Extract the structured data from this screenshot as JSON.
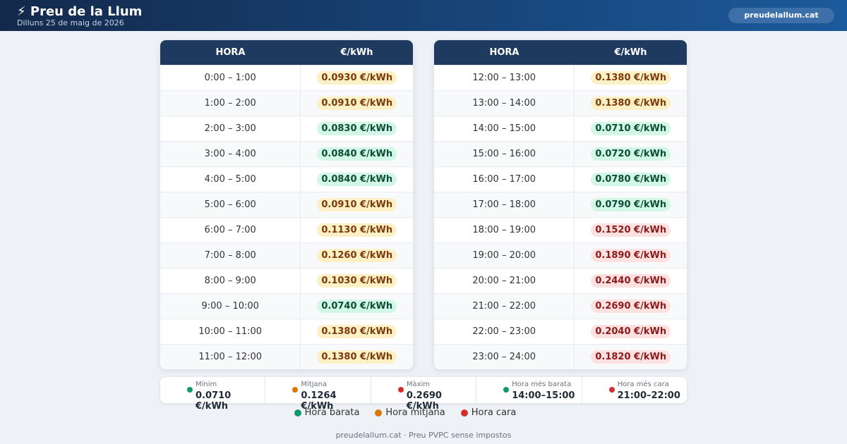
{
  "header": {
    "title": "⚡ Preu de la Llum",
    "subtitle": "Dilluns 25 de maig de 2026",
    "site_button": "preudelallum.cat"
  },
  "tables": [
    {
      "columns": [
        "HORA",
        "€/kWh"
      ],
      "rows": [
        {
          "time": "0:00 – 1:00",
          "price": "0.0930 €/kWh",
          "tone": "amber"
        },
        {
          "time": "1:00 – 2:00",
          "price": "0.0910 €/kWh",
          "tone": "amber"
        },
        {
          "time": "2:00 – 3:00",
          "price": "0.0830 €/kWh",
          "tone": "green"
        },
        {
          "time": "3:00 – 4:00",
          "price": "0.0840 €/kWh",
          "tone": "green"
        },
        {
          "time": "4:00 – 5:00",
          "price": "0.0840 €/kWh",
          "tone": "green"
        },
        {
          "time": "5:00 – 6:00",
          "price": "0.0910 €/kWh",
          "tone": "amber"
        },
        {
          "time": "6:00 – 7:00",
          "price": "0.1130 €/kWh",
          "tone": "amber"
        },
        {
          "time": "7:00 – 8:00",
          "price": "0.1260 €/kWh",
          "tone": "amber"
        },
        {
          "time": "8:00 – 9:00",
          "price": "0.1030 €/kWh",
          "tone": "amber"
        },
        {
          "time": "9:00 – 10:00",
          "price": "0.0740 €/kWh",
          "tone": "green"
        },
        {
          "time": "10:00 – 11:00",
          "price": "0.1380 €/kWh",
          "tone": "amber"
        },
        {
          "time": "11:00 – 12:00",
          "price": "0.1380 €/kWh",
          "tone": "amber"
        }
      ]
    },
    {
      "columns": [
        "HORA",
        "€/kWh"
      ],
      "rows": [
        {
          "time": "12:00 – 13:00",
          "price": "0.1380 €/kWh",
          "tone": "amber"
        },
        {
          "time": "13:00 – 14:00",
          "price": "0.1380 €/kWh",
          "tone": "amber"
        },
        {
          "time": "14:00 – 15:00",
          "price": "0.0710 €/kWh",
          "tone": "green"
        },
        {
          "time": "15:00 – 16:00",
          "price": "0.0720 €/kWh",
          "tone": "green"
        },
        {
          "time": "16:00 – 17:00",
          "price": "0.0780 €/kWh",
          "tone": "green"
        },
        {
          "time": "17:00 – 18:00",
          "price": "0.0790 €/kWh",
          "tone": "green"
        },
        {
          "time": "18:00 – 19:00",
          "price": "0.1520 €/kWh",
          "tone": "red"
        },
        {
          "time": "19:00 – 20:00",
          "price": "0.1890 €/kWh",
          "tone": "red"
        },
        {
          "time": "20:00 – 21:00",
          "price": "0.2440 €/kWh",
          "tone": "red"
        },
        {
          "time": "21:00 – 22:00",
          "price": "0.2690 €/kWh",
          "tone": "red"
        },
        {
          "time": "22:00 – 23:00",
          "price": "0.2040 €/kWh",
          "tone": "red"
        },
        {
          "time": "23:00 – 24:00",
          "price": "0.1820 €/kWh",
          "tone": "red"
        }
      ]
    }
  ],
  "stats": [
    {
      "label": "Mínim",
      "value": "0.0710 €/kWh",
      "color": "green"
    },
    {
      "label": "Mitjana",
      "value": "0.1264 €/kWh",
      "color": "amber"
    },
    {
      "label": "Màxim",
      "value": "0.2690 €/kWh",
      "color": "red"
    },
    {
      "label": "Hora més barata",
      "value": "14:00–15:00",
      "color": "green"
    },
    {
      "label": "Hora més cara",
      "value": "21:00–22:00",
      "color": "red"
    }
  ],
  "legend": [
    {
      "label": "Hora barata",
      "color": "green"
    },
    {
      "label": "Hora mitjana",
      "color": "amber"
    },
    {
      "label": "Hora cara",
      "color": "red"
    }
  ],
  "footer": "preudelallum.cat · Preu PVPC sense impostos"
}
